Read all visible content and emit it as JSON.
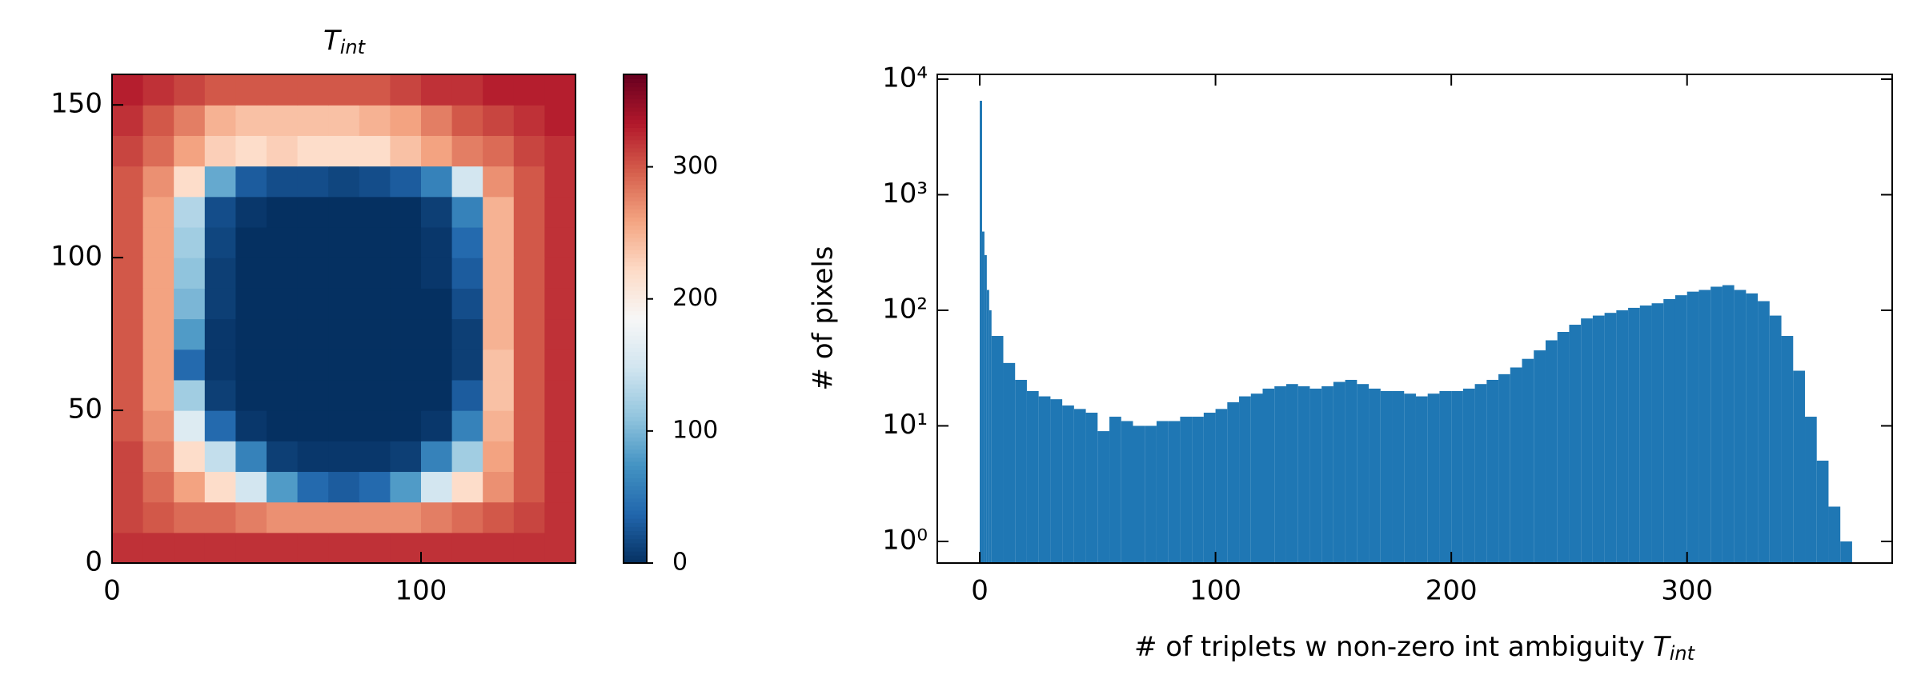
{
  "chart_data": [
    {
      "type": "heatmap",
      "title": "T",
      "title_subscript": "int",
      "xlim": [
        0,
        150
      ],
      "ylim": [
        0,
        160
      ],
      "xticks": [
        0,
        100
      ],
      "yticks": [
        0,
        50,
        100,
        150
      ],
      "colorbar_lim": [
        0,
        370
      ],
      "colorbar_ticks": [
        0,
        100,
        200,
        300
      ],
      "colormap": [
        "#053061",
        "#2166ac",
        "#4393c3",
        "#92c5de",
        "#d1e5f0",
        "#f7f7f7",
        "#fddbc7",
        "#f4a582",
        "#d6604d",
        "#b2182b",
        "#67001f"
      ],
      "z": [
        [
          320,
          320,
          320,
          320,
          320,
          320,
          320,
          320,
          320,
          320,
          320,
          320,
          320,
          320,
          320
        ],
        [
          310,
          300,
          290,
          290,
          280,
          270,
          270,
          270,
          270,
          270,
          280,
          290,
          300,
          310,
          320
        ],
        [
          310,
          290,
          260,
          220,
          150,
          80,
          40,
          30,
          40,
          80,
          150,
          220,
          270,
          300,
          320
        ],
        [
          310,
          280,
          220,
          140,
          60,
          10,
          5,
          5,
          5,
          10,
          60,
          120,
          260,
          300,
          320
        ],
        [
          300,
          270,
          160,
          40,
          5,
          0,
          0,
          0,
          0,
          0,
          5,
          60,
          250,
          300,
          320
        ],
        [
          300,
          260,
          120,
          10,
          0,
          0,
          0,
          0,
          0,
          0,
          0,
          30,
          240,
          300,
          320
        ],
        [
          300,
          260,
          40,
          5,
          0,
          0,
          0,
          0,
          0,
          0,
          0,
          10,
          240,
          300,
          320
        ],
        [
          300,
          260,
          80,
          5,
          0,
          0,
          0,
          0,
          0,
          0,
          0,
          10,
          250,
          300,
          320
        ],
        [
          300,
          260,
          100,
          10,
          0,
          0,
          0,
          0,
          0,
          0,
          0,
          20,
          250,
          300,
          320
        ],
        [
          300,
          260,
          110,
          10,
          0,
          0,
          0,
          0,
          0,
          0,
          5,
          30,
          250,
          300,
          320
        ],
        [
          300,
          260,
          120,
          15,
          0,
          0,
          0,
          0,
          0,
          0,
          5,
          40,
          250,
          300,
          320
        ],
        [
          300,
          260,
          130,
          20,
          5,
          0,
          0,
          0,
          0,
          0,
          10,
          60,
          250,
          300,
          320
        ],
        [
          300,
          270,
          220,
          90,
          30,
          20,
          20,
          15,
          20,
          30,
          60,
          150,
          270,
          300,
          320
        ],
        [
          310,
          290,
          260,
          230,
          220,
          230,
          220,
          220,
          220,
          240,
          260,
          280,
          290,
          310,
          320
        ],
        [
          320,
          300,
          280,
          250,
          240,
          240,
          240,
          240,
          250,
          260,
          280,
          300,
          310,
          320,
          330
        ],
        [
          330,
          320,
          310,
          300,
          300,
          300,
          300,
          300,
          300,
          310,
          320,
          320,
          330,
          330,
          330
        ]
      ]
    },
    {
      "type": "histogram",
      "xlabel": "# of triplets w non-zero int ambiguity",
      "xlabel_symbol": "T",
      "xlabel_subscript": "int",
      "ylabel": "# of pixels",
      "color": "#1f77b4",
      "log_y": true,
      "xlim": [
        -18,
        387
      ],
      "ylim": [
        0.65,
        11000
      ],
      "xticks": [
        0,
        100,
        200,
        300
      ],
      "yticks": [
        {
          "value": 1,
          "label": "10⁰"
        },
        {
          "value": 10,
          "label": "10¹"
        },
        {
          "value": 100,
          "label": "10²"
        },
        {
          "value": 1000,
          "label": "10³"
        },
        {
          "value": 10000,
          "label": "10⁴"
        }
      ],
      "bins": [
        0,
        1,
        2,
        3,
        4,
        5,
        10,
        15,
        20,
        25,
        30,
        35,
        40,
        45,
        50,
        55,
        60,
        65,
        70,
        75,
        80,
        85,
        90,
        95,
        100,
        105,
        110,
        115,
        120,
        125,
        130,
        135,
        140,
        145,
        150,
        155,
        160,
        165,
        170,
        175,
        180,
        185,
        190,
        195,
        200,
        205,
        210,
        215,
        220,
        225,
        230,
        235,
        240,
        245,
        250,
        255,
        260,
        265,
        270,
        275,
        280,
        285,
        290,
        295,
        300,
        305,
        310,
        315,
        320,
        325,
        330,
        335,
        340,
        345,
        350,
        355,
        360,
        365,
        370
      ],
      "counts": [
        6500,
        480,
        300,
        150,
        100,
        60,
        35,
        25,
        20,
        18,
        17,
        15,
        14,
        13,
        9,
        12,
        11,
        10,
        10,
        11,
        11,
        12,
        12,
        13,
        14,
        16,
        18,
        19,
        21,
        22,
        23,
        22,
        21,
        22,
        24,
        25,
        23,
        21,
        20,
        20,
        19,
        18,
        19,
        20,
        20,
        21,
        23,
        25,
        28,
        32,
        38,
        45,
        55,
        65,
        75,
        85,
        90,
        95,
        100,
        105,
        110,
        115,
        125,
        135,
        145,
        150,
        160,
        165,
        150,
        140,
        120,
        90,
        60,
        30,
        12,
        5,
        2,
        1
      ]
    }
  ]
}
